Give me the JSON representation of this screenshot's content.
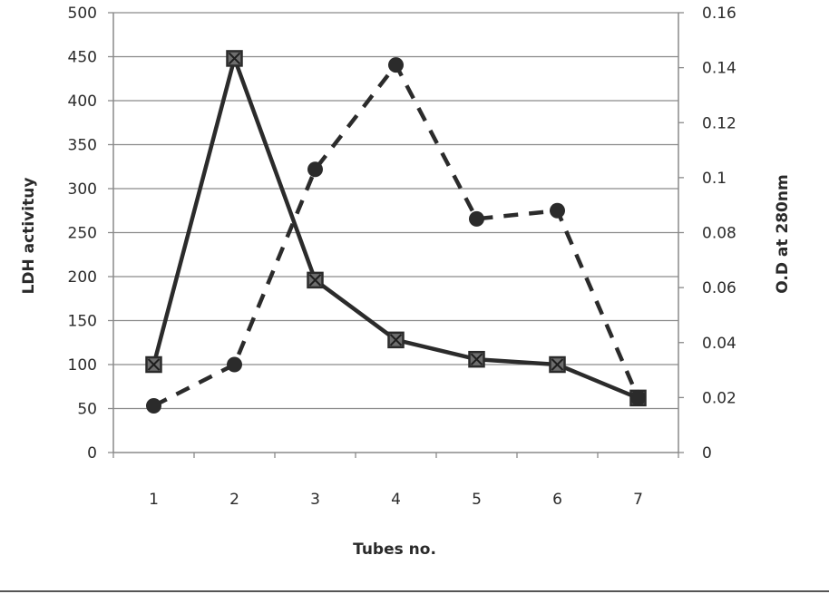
{
  "chart_data": {
    "type": "line",
    "xlabel": "Tubes no.",
    "ylabel": "LDH activituy",
    "y2label": "O.D at 280nm",
    "categories": [
      "1",
      "2",
      "3",
      "4",
      "5",
      "6",
      "7"
    ],
    "ylim": [
      0,
      500
    ],
    "y2lim": [
      0,
      0.16
    ],
    "yticks": [
      "0",
      "50",
      "100",
      "150",
      "200",
      "250",
      "300",
      "350",
      "400",
      "450",
      "500"
    ],
    "y2ticks": [
      "0",
      "0.02",
      "0.04",
      "0.06",
      "0.08",
      "0.1",
      "0.12",
      "0.14",
      "0.16"
    ],
    "grid": true,
    "legend": "none",
    "series": [
      {
        "axis": "left",
        "style": "solid",
        "marker": "square-x",
        "color": "#2b2b2b",
        "values": [
          100,
          448,
          196,
          128,
          106,
          100,
          62
        ]
      },
      {
        "axis": "right",
        "style": "dashed",
        "marker": "circle",
        "color": "#2b2b2b",
        "values": [
          0.017,
          0.032,
          0.103,
          0.141,
          0.085,
          0.088,
          0.02
        ]
      }
    ]
  }
}
